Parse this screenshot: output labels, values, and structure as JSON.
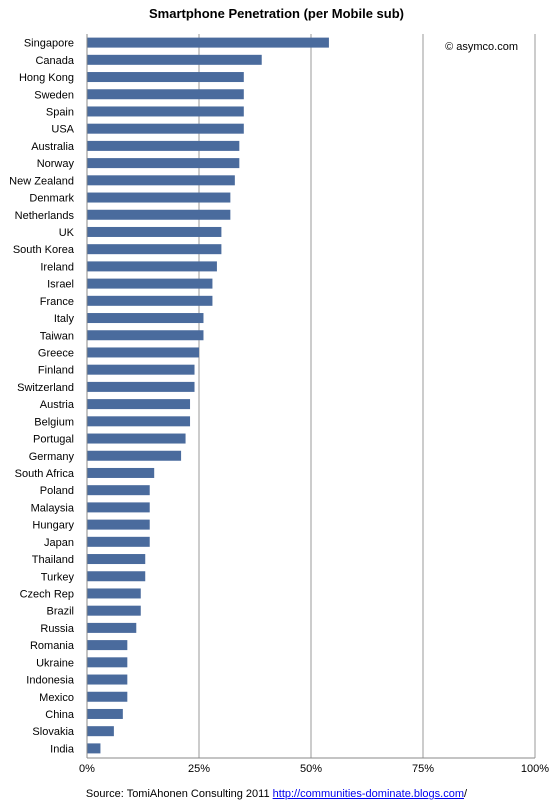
{
  "chart_data": {
    "type": "bar",
    "orientation": "horizontal",
    "title": "Smartphone Penetration (per Mobile sub)",
    "watermark": "© asymco.com",
    "categories": [
      "Singapore",
      "Canada",
      "Hong Kong",
      "Sweden",
      "Spain",
      "USA",
      "Australia",
      "Norway",
      "New Zealand",
      "Denmark",
      "Netherlands",
      "UK",
      "South Korea",
      "Ireland",
      "Israel",
      "France",
      "Italy",
      "Taiwan",
      "Greece",
      "Finland",
      "Switzerland",
      "Austria",
      "Belgium",
      "Portugal",
      "Germany",
      "South Africa",
      "Poland",
      "Malaysia",
      "Hungary",
      "Japan",
      "Thailand",
      "Turkey",
      "Czech Rep",
      "Brazil",
      "Russia",
      "Romania",
      "Ukraine",
      "Indonesia",
      "Mexico",
      "China",
      "Slovakia",
      "India"
    ],
    "values": [
      54,
      39,
      35,
      35,
      35,
      35,
      34,
      34,
      33,
      32,
      32,
      30,
      30,
      29,
      28,
      28,
      26,
      26,
      25,
      24,
      24,
      23,
      23,
      22,
      21,
      15,
      14,
      14,
      14,
      14,
      13,
      13,
      12,
      12,
      11,
      9,
      9,
      9,
      9,
      8,
      6,
      3
    ],
    "xlim": [
      0,
      100
    ],
    "x_ticks": [
      "0%",
      "25%",
      "50%",
      "75%",
      "100%"
    ],
    "grid": "vertical",
    "bar_color": "#4a6b9d",
    "legend": "none"
  },
  "source": {
    "prefix": "Source: TomiAhonen Consulting 2011 ",
    "link_text": "http://communities-dominate.blogs.com",
    "suffix": "/"
  }
}
